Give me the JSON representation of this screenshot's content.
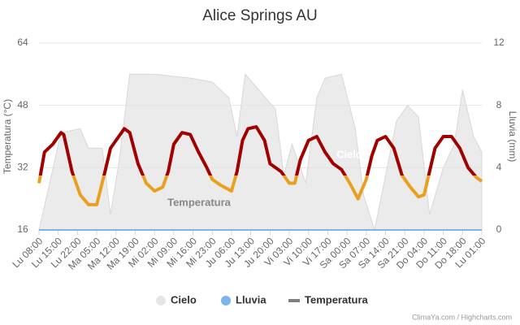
{
  "chart_data": {
    "type": "line",
    "title": "Alice Springs AU",
    "y_label": "Temperatura (°C)",
    "y2_label": "Lluvia (mm)",
    "credits": "ClimaYa.com / Highcharts.com",
    "annotations": [
      "Cielo",
      "Temperatura"
    ],
    "xlim": [
      0,
      161
    ],
    "xticks": [
      {
        "value": 0,
        "label": "Lu 08:00"
      },
      {
        "value": 7,
        "label": "Lu 15:00"
      },
      {
        "value": 14,
        "label": "Lu 22:00"
      },
      {
        "value": 21,
        "label": "Ma 05:00"
      },
      {
        "value": 28,
        "label": "Ma 12:00"
      },
      {
        "value": 35,
        "label": "Ma 19:00"
      },
      {
        "value": 42,
        "label": "Mi 02:00"
      },
      {
        "value": 49,
        "label": "Mi 09:00"
      },
      {
        "value": 56,
        "label": "Mi 16:00"
      },
      {
        "value": 63,
        "label": "Mi 23:00"
      },
      {
        "value": 70,
        "label": "Ju 06:00"
      },
      {
        "value": 77,
        "label": "Ju 13:00"
      },
      {
        "value": 84,
        "label": "Ju 20:00"
      },
      {
        "value": 91,
        "label": "Vi 03:00"
      },
      {
        "value": 98,
        "label": "Vi 10:00"
      },
      {
        "value": 105,
        "label": "Vi 17:00"
      },
      {
        "value": 112,
        "label": "Sa 00:00"
      },
      {
        "value": 119,
        "label": "Sa 07:00"
      },
      {
        "value": 126,
        "label": "Sa 14:00"
      },
      {
        "value": 133,
        "label": "Sa 21:00"
      },
      {
        "value": 140,
        "label": "Do 04:00"
      },
      {
        "value": 147,
        "label": "Do 11:00"
      },
      {
        "value": 154,
        "label": "Do 18:00"
      },
      {
        "value": 161,
        "label": "Lu 01:00"
      }
    ],
    "ylim": [
      16,
      64
    ],
    "yticks": [
      16,
      32,
      48,
      64
    ],
    "y2lim": [
      0,
      12
    ],
    "y2ticks": [
      0,
      4,
      8,
      12
    ],
    "grid": true,
    "legend": "bottom",
    "series": [
      {
        "name": "Cielo",
        "type": "area",
        "color": "#e6e6e6",
        "x": [
          0,
          8,
          15,
          18,
          23,
          26,
          29,
          33,
          42,
          55,
          63,
          69,
          72,
          75,
          86,
          89,
          92,
          97,
          101,
          104,
          110,
          115,
          118,
          122,
          126,
          130,
          134,
          138,
          142,
          147,
          151,
          154,
          158,
          161
        ],
        "values": [
          16,
          41,
          42,
          37,
          37,
          20,
          33,
          56,
          56,
          55,
          54,
          50,
          40,
          56,
          47,
          30,
          38,
          28,
          50,
          55,
          56,
          42,
          25,
          16,
          30,
          44,
          48,
          45,
          20,
          32,
          38,
          52,
          40,
          36
        ]
      },
      {
        "name": "Lluvia",
        "type": "line",
        "axis": "y2",
        "color": "#7cb5ec",
        "x": [
          0,
          161
        ],
        "values": [
          0,
          0
        ]
      },
      {
        "name": "Temperatura",
        "type": "line",
        "color": "#808080",
        "zones": [
          {
            "value": 30,
            "color": "#e8a020"
          },
          {
            "color": "#a00000"
          }
        ],
        "x": [
          0,
          2,
          5,
          8,
          9,
          12,
          15,
          18,
          21,
          24,
          26,
          29,
          31,
          33,
          36,
          39,
          42,
          45,
          47,
          49,
          52,
          55,
          58,
          61,
          63,
          66,
          70,
          72,
          74,
          76,
          79,
          82,
          84,
          88,
          91,
          93,
          95,
          98,
          101,
          104,
          107,
          110,
          113,
          116,
          119,
          121,
          123,
          126,
          129,
          132,
          135,
          138,
          140,
          142,
          144,
          147,
          150,
          153,
          156,
          159,
          161
        ],
        "values": [
          28,
          36,
          38,
          41,
          40.5,
          31,
          25,
          22.5,
          22.5,
          31,
          37,
          40,
          42,
          41,
          33,
          28,
          26,
          27,
          31,
          38,
          41,
          40.5,
          36,
          32,
          29,
          27.5,
          26,
          31,
          39,
          42,
          42.5,
          39,
          33,
          31,
          28,
          28,
          34,
          39,
          40,
          36,
          33,
          31.5,
          28,
          24,
          29,
          35,
          39,
          40,
          37,
          30,
          27,
          24.5,
          25,
          31,
          37,
          40,
          40,
          37,
          32,
          29.5,
          28.5
        ]
      }
    ]
  }
}
